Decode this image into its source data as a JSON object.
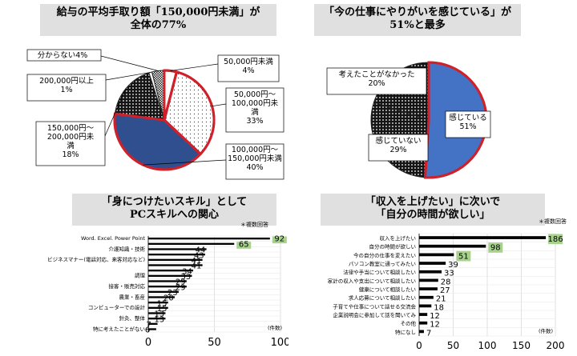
{
  "chart_data": [
    {
      "type": "pie",
      "title_lines": [
        "給与の平均手取り額「150,000円未満」が",
        "全体の77%"
      ],
      "slices": [
        {
          "label": "50,000円未満",
          "percent_label": "4%",
          "value": 4,
          "color": "#ffffff",
          "pattern": "none"
        },
        {
          "label": "50,000円～100,000円未満",
          "label_lines": [
            "50,000円～",
            "100,000円未",
            "満"
          ],
          "percent_label": "33%",
          "value": 33,
          "color": "#ffffff",
          "pattern": "sparse-dots"
        },
        {
          "label": "100,000円～150,000円未満",
          "label_lines": [
            "100,000円～",
            "150,000円未満"
          ],
          "percent_label": "40%",
          "value": 40,
          "color": "#2f4f8f",
          "pattern": "none"
        },
        {
          "label": "150,000円～200,000円未満",
          "label_lines": [
            "150,000円～",
            "200,000円未",
            "満"
          ],
          "percent_label": "18%",
          "value": 18,
          "color": "#141414",
          "pattern": "dots"
        },
        {
          "label": "200,000円以上",
          "percent_label": "1%",
          "value": 1,
          "color": "#ffffff",
          "pattern": "none"
        },
        {
          "label": "分からない",
          "percent_label": "4%",
          "value": 4,
          "color": "#333333",
          "pattern": "checker"
        }
      ],
      "highlight_border": "#d0202a"
    },
    {
      "type": "pie",
      "title_lines": [
        "「今の仕事にやりがいを感じている」が",
        "51%と最多"
      ],
      "slices": [
        {
          "label": "感じている",
          "percent_label": "51%",
          "value": 51,
          "color": "#4472c4",
          "pattern": "none"
        },
        {
          "label": "感じていない",
          "percent_label": "29%",
          "value": 29,
          "color": "#ffffff",
          "pattern": "dots"
        },
        {
          "label": "考えたことがなかった",
          "percent_label": "20%",
          "value": 20,
          "color": "#141414",
          "pattern": "dots"
        }
      ],
      "highlight_border": "#d0202a"
    },
    {
      "type": "bar",
      "orientation": "horizontal",
      "title_lines": [
        "「身につけたいスキル」として",
        "PCスキルへの関心"
      ],
      "note": "＊複数回答",
      "unit_label": "(件数)",
      "categories": [
        "Word. Excel. Power Point",
        "",
        "介護知識・技術",
        "",
        "ビジネスマナー(電話対応、来客対応など)",
        "",
        "",
        "調理",
        "",
        "接客・販売対応",
        "",
        "農業・畜産",
        "",
        "コンピューターでの設計",
        "",
        "針灸、整体",
        "",
        "特に考えたことがない"
      ],
      "values": [
        92,
        65,
        44,
        43,
        41,
        41,
        34,
        33,
        29,
        29,
        23,
        20,
        15,
        15,
        13,
        13,
        7,
        6
      ],
      "highlight_indices": [
        0,
        1
      ],
      "bar_color": "#000000",
      "highlight_color": "#a9d18e",
      "xlim": [
        0,
        100
      ],
      "xticks": [
        "0",
        "50",
        "100"
      ]
    },
    {
      "type": "bar",
      "orientation": "horizontal",
      "title_lines": [
        "「収入を上げたい」に次いで",
        "「自分の時間が欲しい」"
      ],
      "note": "＊複数回答",
      "unit_label": "(件数)",
      "categories": [
        "収入を上げたい",
        "自分の時間が欲しい",
        "今の自分の仕事を変えたい",
        "パソコン教室に通ってみたい",
        "法律や手当について相談したい",
        "家計の収入や支出について相談したい",
        "健康について相談したい",
        "求人応募について相談したい",
        "子育てや仕事について話せる交流会",
        "企業説明会に参加して話を聞いてみ",
        "その他",
        "特になし"
      ],
      "values": [
        186,
        98,
        51,
        39,
        33,
        28,
        27,
        21,
        18,
        12,
        12,
        7
      ],
      "highlight_indices": [
        0,
        1,
        2
      ],
      "bar_color": "#000000",
      "highlight_color": "#a9d18e",
      "xlim": [
        0,
        200
      ],
      "xticks": [
        "0",
        "50",
        "100",
        "150",
        "200"
      ]
    }
  ]
}
